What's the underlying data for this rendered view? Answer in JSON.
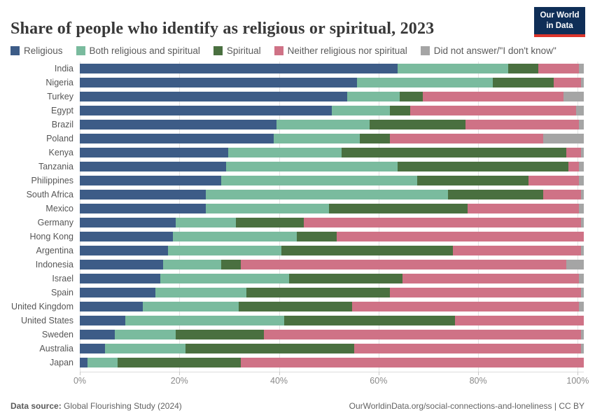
{
  "header": {
    "title": "Share of people who identify as religious or spiritual, 2023",
    "logo": {
      "line1": "Our World",
      "line2": "in Data"
    }
  },
  "colors": {
    "religious": "#3d5c87",
    "both": "#7abb9e",
    "spiritual": "#4a7040",
    "neither": "#cf7286",
    "dk": "#a5a5a5",
    "logo_bg": "#0f2e57",
    "logo_red": "#dc352b",
    "gridline": "#e2e2e2"
  },
  "legend": [
    {
      "label": "Religious",
      "key": "religious"
    },
    {
      "label": "Both religious and spiritual",
      "key": "both"
    },
    {
      "label": "Spiritual",
      "key": "spiritual"
    },
    {
      "label": "Neither religious nor spiritual",
      "key": "neither"
    },
    {
      "label": "Did not answer/\"I don't know\"",
      "key": "dk"
    }
  ],
  "chart_data": {
    "type": "bar",
    "stacked": true,
    "orientation": "horizontal",
    "title": "Share of people who identify as religious or spiritual, 2023",
    "xlabel": "",
    "ylabel": "",
    "xlim": [
      0,
      100
    ],
    "x_tick_values": [
      0,
      20,
      40,
      60,
      80,
      100
    ],
    "x_tick_labels": [
      "0%",
      "20%",
      "40%",
      "60%",
      "80%",
      "100%"
    ],
    "axis_scale_factor": 0.988,
    "grid": true,
    "legend_position": "top",
    "categories": [
      "India",
      "Nigeria",
      "Turkey",
      "Egypt",
      "Brazil",
      "Poland",
      "Kenya",
      "Tanzania",
      "Philippines",
      "South Africa",
      "Mexico",
      "Germany",
      "Hong Kong",
      "Argentina",
      "Indonesia",
      "Israel",
      "Spain",
      "United Kingdom",
      "United States",
      "Sweden",
      "Australia",
      "Japan"
    ],
    "series": [
      {
        "name": "Religious",
        "key": "religious",
        "values": [
          63,
          55,
          53,
          50,
          39,
          38.5,
          29.5,
          29,
          28,
          25,
          25,
          19,
          18.5,
          17.5,
          16.5,
          16,
          15,
          12.5,
          9,
          7,
          5,
          1.5
        ]
      },
      {
        "name": "Both religious and spiritual",
        "key": "both",
        "values": [
          22,
          27,
          10.5,
          11.5,
          18.5,
          17,
          22.5,
          34,
          39,
          48,
          24.5,
          12,
          24.5,
          22.5,
          11.5,
          25.5,
          18,
          19,
          31.5,
          12,
          16,
          6
        ]
      },
      {
        "name": "Spiritual",
        "key": "spiritual",
        "values": [
          6,
          12,
          4.5,
          4,
          19,
          6,
          44.5,
          34,
          22,
          19,
          27.5,
          13.5,
          8,
          34,
          4,
          22.5,
          28.5,
          22.5,
          34,
          17.5,
          33.5,
          24.5
        ]
      },
      {
        "name": "Neither religious nor spiritual",
        "key": "neither",
        "values": [
          8,
          5.5,
          28,
          33,
          22.5,
          30.5,
          3,
          2,
          10,
          7.5,
          22,
          55,
          49,
          25.5,
          64.5,
          35,
          38,
          45,
          25.5,
          63,
          45,
          68
        ]
      },
      {
        "name": "Did not answer/\"I don't know\"",
        "key": "dk",
        "values": [
          1,
          0.5,
          4,
          1.5,
          1,
          8,
          0.5,
          1,
          1,
          0.5,
          1,
          0.5,
          0,
          0.5,
          3.5,
          1,
          0.5,
          1,
          0,
          0.5,
          0.5,
          0
        ]
      }
    ]
  },
  "footer": {
    "source_label": "Data source:",
    "source_value": " Global Flourishing Study (2024)",
    "link": "OurWorldinData.org/social-connections-and-loneliness | CC BY"
  }
}
